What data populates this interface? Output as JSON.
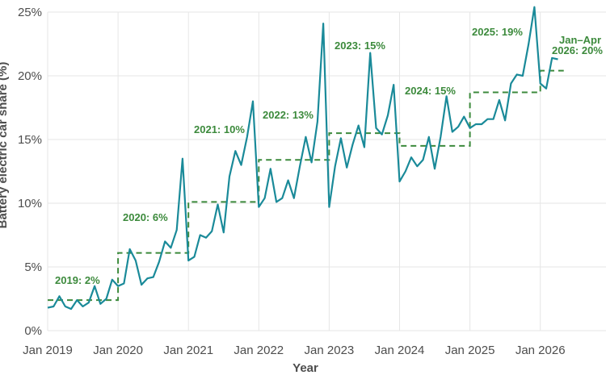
{
  "chart_data": {
    "type": "line",
    "xlabel": "Year",
    "ylabel": "Battery electric car share (%)",
    "ylim": [
      0,
      25
    ],
    "y_ticks": [
      0,
      5,
      10,
      15,
      20,
      25
    ],
    "y_tick_labels": [
      "0%",
      "5%",
      "10%",
      "15%",
      "20%",
      "25%"
    ],
    "x_ticks": [
      2019,
      2020,
      2021,
      2022,
      2023,
      2024,
      2025,
      2026
    ],
    "x_tick_labels": [
      "Jan 2019",
      "Jan 2020",
      "Jan 2021",
      "Jan 2022",
      "Jan 2023",
      "Jan 2024",
      "Jan 2025",
      "Jan 2026"
    ],
    "grid": true,
    "colors": {
      "monthly": "#1a8a99",
      "annual": "#3c8a3c"
    },
    "monthly": {
      "start": "Jan 2019",
      "values": [
        1.8,
        1.9,
        2.7,
        1.9,
        1.7,
        2.4,
        1.9,
        2.2,
        3.5,
        2.1,
        2.5,
        4.0,
        3.5,
        3.7,
        6.4,
        5.5,
        3.6,
        4.1,
        4.2,
        5.4,
        7.0,
        6.5,
        7.9,
        13.5,
        5.5,
        5.8,
        7.5,
        7.3,
        7.8,
        9.9,
        7.7,
        12.1,
        14.1,
        13.0,
        15.2,
        18.0,
        9.7,
        10.4,
        12.7,
        10.1,
        10.4,
        11.8,
        10.4,
        12.9,
        15.2,
        13.2,
        16.4,
        24.1,
        9.7,
        12.9,
        15.1,
        12.8,
        14.6,
        16.1,
        14.4,
        21.8,
        15.9,
        15.4,
        16.9,
        19.3,
        11.7,
        12.5,
        13.6,
        12.9,
        13.4,
        15.2,
        12.7,
        15.2,
        18.4,
        15.6,
        16.0,
        16.8,
        15.9,
        16.2,
        16.2,
        16.6,
        16.6,
        18.1,
        16.5,
        19.4,
        20.1,
        20.0,
        22.5,
        25.4,
        19.4,
        19.0,
        21.4,
        21.3
      ]
    },
    "annual": [
      {
        "label": "2019: 2%",
        "year": 2019,
        "value": 2.4
      },
      {
        "label": "2020: 6%",
        "year": 2020,
        "value": 6.1
      },
      {
        "label": "2021: 10%",
        "year": 2021,
        "value": 10.1
      },
      {
        "label": "2022: 13%",
        "year": 2022,
        "value": 13.4
      },
      {
        "label": "2023: 15%",
        "year": 2023,
        "value": 15.5
      },
      {
        "label": "2024: 15%",
        "year": 2024,
        "value": 14.5
      },
      {
        "label": "2025: 19%",
        "year": 2025,
        "value": 18.7
      },
      {
        "label": "2026: 20%",
        "label_prefix": "Jan–Apr",
        "year": 2026,
        "value": 20.4,
        "months": 4
      }
    ]
  }
}
